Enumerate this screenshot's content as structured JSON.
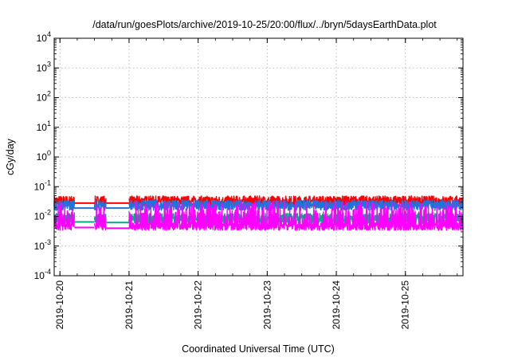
{
  "chart_data": {
    "type": "line",
    "title": "/data/run/goesPlots/archive/2019-10-25/20:00/flux/../bryn/5daysEarthData.plot",
    "xlabel": "Coordinated Universal Time (UTC)",
    "ylabel": "cGy/day",
    "y_scale": "log",
    "ylim": [
      0.0001,
      10000
    ],
    "y_ticks": [
      {
        "value": 0.0001,
        "base": "10",
        "exp": "-4"
      },
      {
        "value": 0.001,
        "base": "10",
        "exp": "-3"
      },
      {
        "value": 0.01,
        "base": "10",
        "exp": "-2"
      },
      {
        "value": 0.1,
        "base": "10",
        "exp": "-1"
      },
      {
        "value": 1,
        "base": "10",
        "exp": "0"
      },
      {
        "value": 10,
        "base": "10",
        "exp": "1"
      },
      {
        "value": 100,
        "base": "10",
        "exp": "2"
      },
      {
        "value": 1000,
        "base": "10",
        "exp": "3"
      },
      {
        "value": 10000,
        "base": "10",
        "exp": "4"
      }
    ],
    "xlim": [
      "2019-10-19T22:00",
      "2019-10-25T20:00"
    ],
    "x_ticks": [
      "2019-10-20",
      "2019-10-21",
      "2019-10-22",
      "2019-10-23",
      "2019-10-24",
      "2019-10-25"
    ],
    "grid": true,
    "legend": "none",
    "series": [
      {
        "color": "#ff0000",
        "base": 0.029,
        "noise": 0.35,
        "segments": [
          [
            "2019-10-19T22:00",
            "2019-10-20T05:00"
          ],
          [
            "2019-10-20T12:00",
            "2019-10-20T16:00"
          ],
          [
            "2019-10-21T00:00",
            "2019-10-25T20:00"
          ]
        ],
        "flat": [
          [
            "2019-10-20T05:00",
            "2019-10-20T12:00",
            0.028
          ],
          [
            "2019-10-20T16:00",
            "2019-10-21T00:00",
            0.028
          ]
        ]
      },
      {
        "color": "#00aa88",
        "base": 0.0075,
        "noise": 0.35,
        "segments": [
          [
            "2019-10-19T22:00",
            "2019-10-20T05:00"
          ],
          [
            "2019-10-20T12:00",
            "2019-10-20T16:00"
          ],
          [
            "2019-10-21T00:00",
            "2019-10-25T20:00"
          ]
        ],
        "flat": [
          [
            "2019-10-20T05:00",
            "2019-10-20T12:00",
            0.0065
          ],
          [
            "2019-10-20T16:00",
            "2019-10-21T00:00",
            0.0062
          ]
        ]
      },
      {
        "color": "#1e74d8",
        "base": 0.021,
        "noise": 0.35,
        "segments": [
          [
            "2019-10-19T22:00",
            "2019-10-20T05:00"
          ],
          [
            "2019-10-20T12:00",
            "2019-10-20T16:00"
          ],
          [
            "2019-10-21T00:00",
            "2019-10-25T20:00"
          ]
        ],
        "flat": [
          [
            "2019-10-20T05:00",
            "2019-10-20T12:00",
            0.019
          ],
          [
            "2019-10-20T16:00",
            "2019-10-21T00:00",
            0.019
          ]
        ]
      },
      {
        "color": "#ff00ff",
        "base": 0.0045,
        "noise": 0.9,
        "segments": [
          [
            "2019-10-19T22:00",
            "2019-10-20T05:00"
          ],
          [
            "2019-10-20T12:00",
            "2019-10-20T16:00"
          ],
          [
            "2019-10-21T00:00",
            "2019-10-25T20:00"
          ]
        ],
        "flat": [
          [
            "2019-10-20T05:00",
            "2019-10-20T12:00",
            0.0042
          ],
          [
            "2019-10-20T16:00",
            "2019-10-21T00:00",
            0.004
          ]
        ]
      }
    ]
  }
}
